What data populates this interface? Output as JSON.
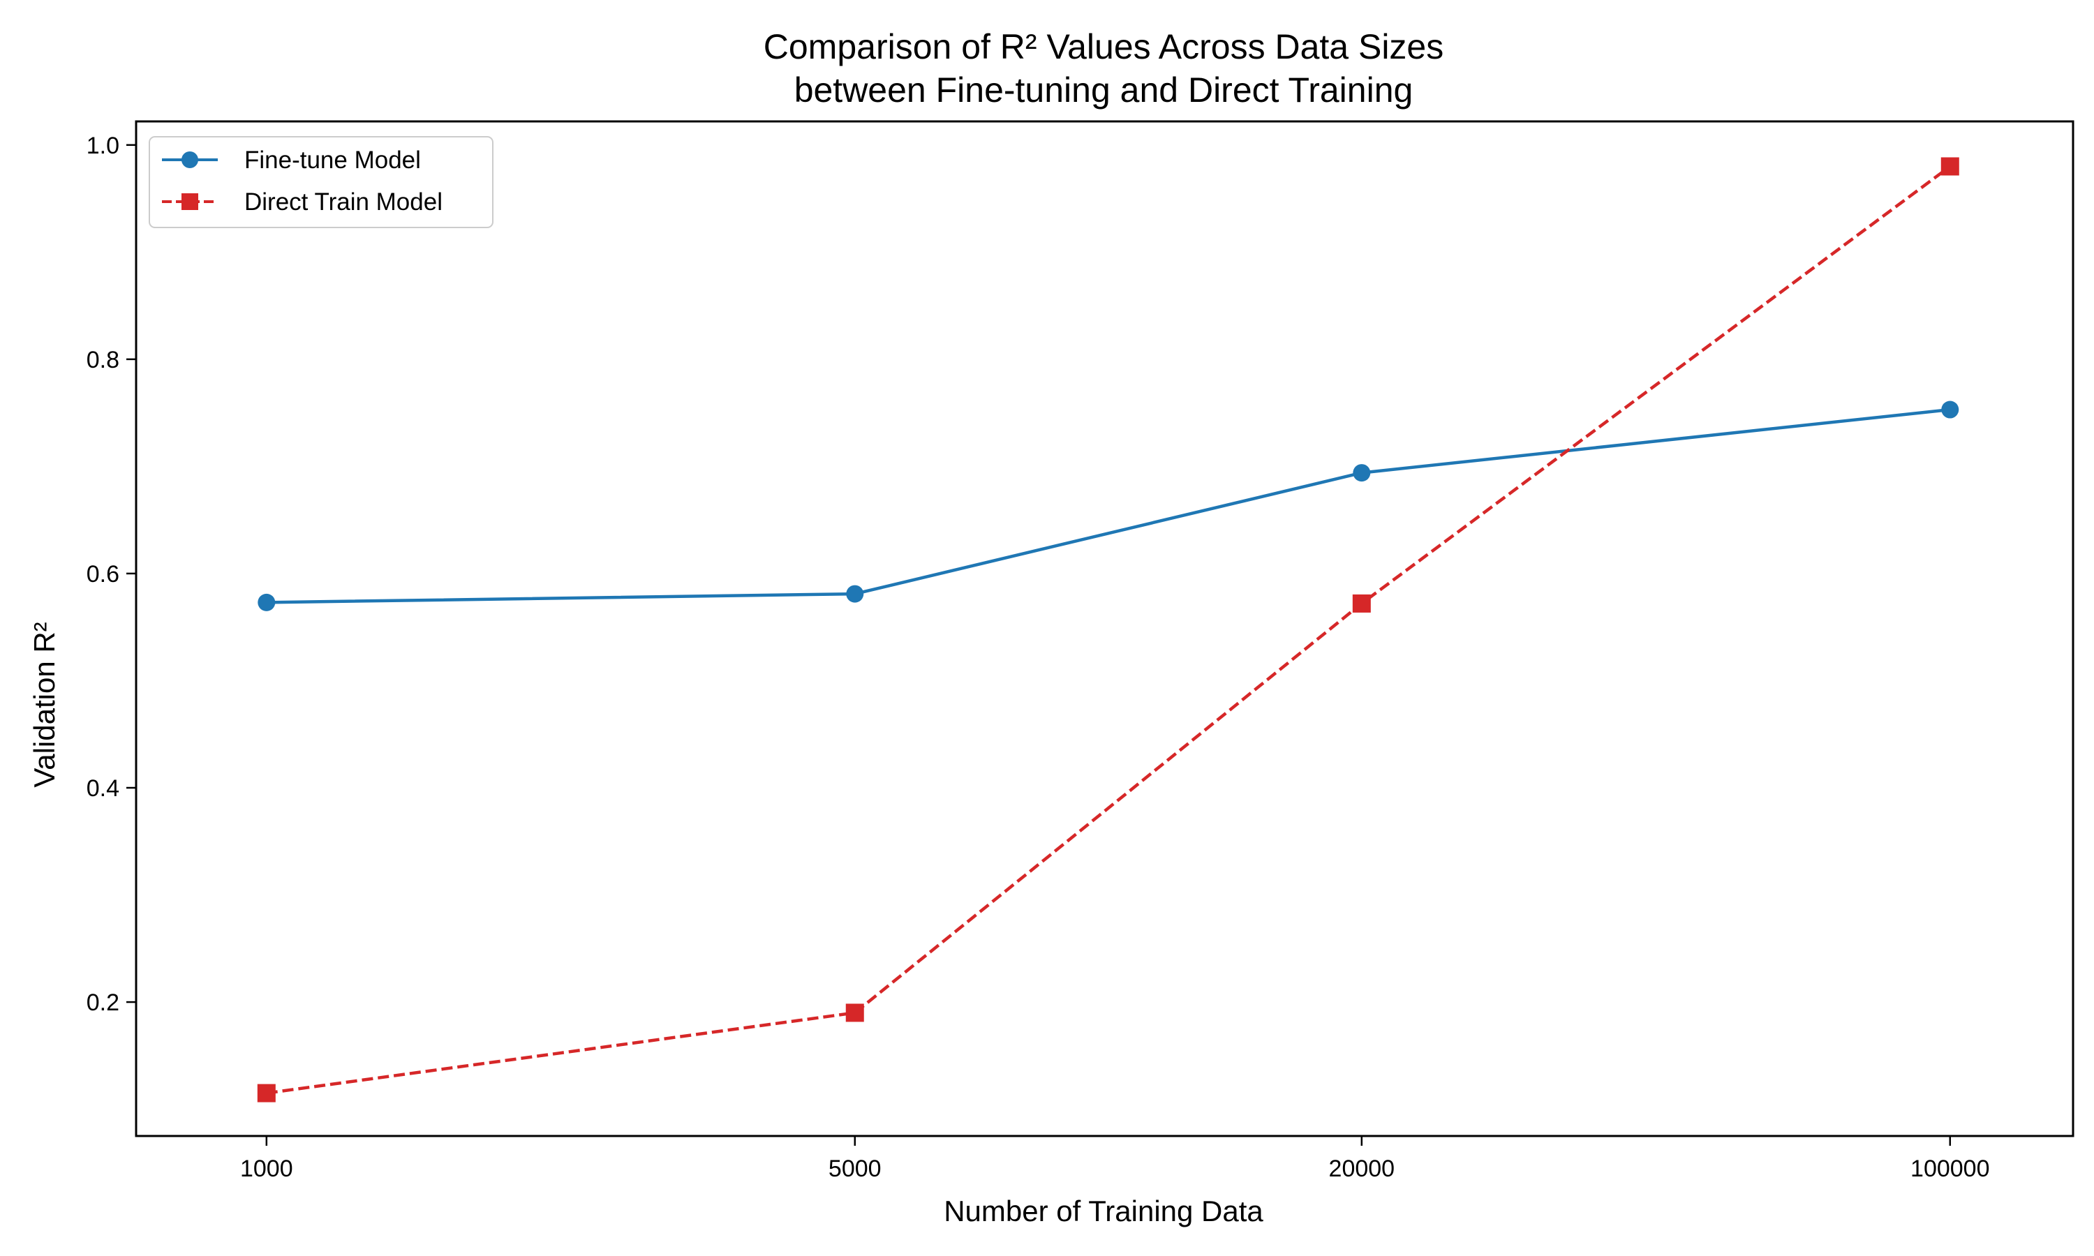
{
  "chart_data": {
    "type": "line",
    "title": "Comparison of R² Values Across Data Sizes",
    "subtitle": "between Fine-tuning and Direct Training",
    "xlabel": "Number of Training Data",
    "ylabel": "Validation R²",
    "categories": [
      "1000",
      "5000",
      "20000",
      "100000"
    ],
    "x": [
      1000,
      5000,
      20000,
      100000
    ],
    "xscale": "log",
    "xlim": [
      700,
      140000
    ],
    "ylim": [
      0.075,
      1.022
    ],
    "yticks": [
      0.2,
      0.4,
      0.6,
      0.8,
      1.0
    ],
    "ytick_labels": [
      "0.2",
      "0.4",
      "0.6",
      "0.8",
      "1.0"
    ],
    "grid": false,
    "legend": "top-left",
    "series": [
      {
        "name": "Fine-tune Model",
        "values": [
          0.573,
          0.581,
          0.694,
          0.753
        ],
        "color": "#1f77b4",
        "linestyle": "solid",
        "marker": "circle"
      },
      {
        "name": "Direct Train Model",
        "values": [
          0.115,
          0.19,
          0.572,
          0.98
        ],
        "color": "#d62728",
        "linestyle": "dashed",
        "marker": "square"
      }
    ]
  }
}
